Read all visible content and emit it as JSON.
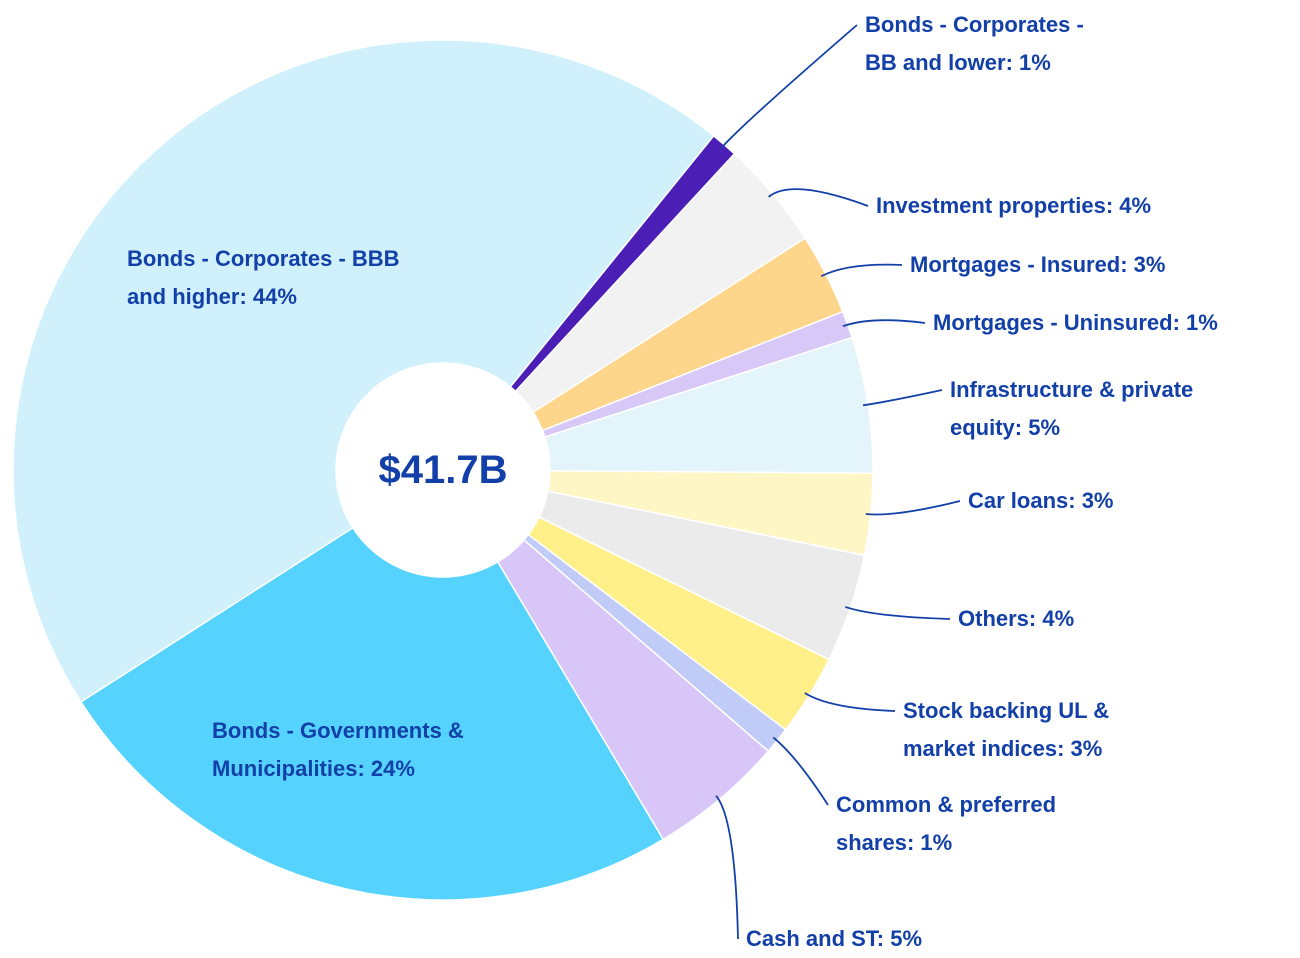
{
  "chart_data": {
    "type": "donut",
    "center_label": "$41.7B",
    "categories": [
      "Bonds - Corporates - BB and lower: 1%",
      "Investment properties: 4%",
      "Mortgages - Insured: 3%",
      "Mortgages - Uninsured: 1%",
      "Infrastructure & private equity: 5%",
      "Car loans: 3%",
      "Others: 4%",
      "Stock backing UL & market indices: 3%",
      "Common & preferred shares: 1%",
      "Cash and ST: 5%",
      "Bonds - Governments & Municipalities: 24%",
      "Bonds - Corporates - BBB and higher: 44%"
    ],
    "values": [
      1,
      4,
      3,
      1,
      5,
      3,
      4,
      3,
      1,
      5,
      24,
      44
    ],
    "colors": [
      "#4b1fb5",
      "#f2f2f2",
      "#fdd58b",
      "#d8c8f8",
      "#e3f4fa",
      "#fff6c6",
      "#ebebeb",
      "#fff08a",
      "#c0cbf8",
      "#d7c6f7",
      "#55d3fe",
      "#d0f1fc"
    ]
  }
}
